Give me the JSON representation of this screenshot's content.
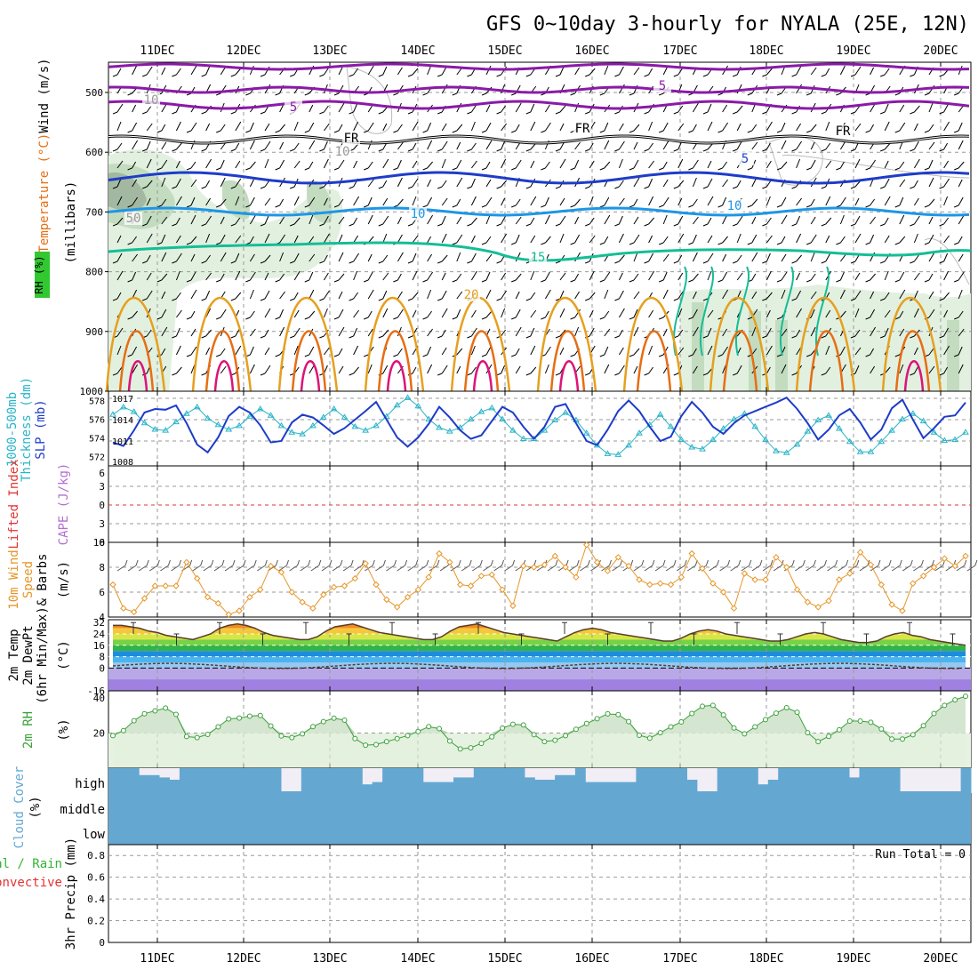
{
  "title": "GFS 0~10day 3-hourly for NYALA (25E, 12N)",
  "dates": [
    "11DEC",
    "12DEC",
    "13DEC",
    "14DEC",
    "15DEC",
    "16DEC",
    "17DEC",
    "18DEC",
    "19DEC",
    "20DEC"
  ],
  "colors": {
    "purple": "#8a1aa8",
    "black": "#000000",
    "blue": "#1e3cc8",
    "lightblue": "#1e96e6",
    "teal": "#14be96",
    "gold": "#e6a01e",
    "orange": "#e66e14",
    "magenta": "#dc1478",
    "rh_light": "#e2f0e0",
    "rh_mid": "#c3dcc0",
    "rh_dark": "#a3b8a0",
    "slp": "#1e3cc8",
    "thick": "#28b4c8",
    "wind10": "#e69628",
    "rh2m": "#3ca03c",
    "cloud": "#64a8d2",
    "cloud_bg": "#f2eef6",
    "precip_red": "#e63232",
    "precip_green": "#32b432"
  },
  "panels": {
    "upper": {
      "ylabel_wind": "Wind (m/s)",
      "ylabel_temp": "Temperature (°C)",
      "ylabel_mb": "(millibars)",
      "ylabel_rh": "RH (%)",
      "ticks": [
        "500",
        "600",
        "700",
        "800",
        "900",
        "1000"
      ],
      "contour_labels": [
        "5",
        "5",
        "FR",
        "FR",
        "FR",
        "5",
        "10",
        "10",
        "15",
        "20",
        "10",
        "10",
        "50"
      ]
    },
    "slp": {
      "ylabel_a": "1000-500mb",
      "ylabel_b": "Thickness (dm)",
      "ylabel_c": "SLP (mb)",
      "left_ticks": [
        "578",
        "576",
        "574",
        "572"
      ],
      "right_ticks": [
        "1017",
        "1014",
        "1011",
        "1008"
      ]
    },
    "cape": {
      "ylabel_a": "Lifted Index",
      "ylabel_b": "CAPE (J/kg)",
      "ticks": [
        "6",
        "3",
        "0",
        "3",
        "6"
      ]
    },
    "wind10": {
      "ylabel_a": "10m Wind",
      "ylabel_b": "Speed",
      "ylabel_c": "& Barbs",
      "ylabel_unit": "(m/s)",
      "ticks": [
        "10",
        "8",
        "6",
        "4"
      ]
    },
    "temp2m": {
      "ylabel_a": "2m Temp",
      "ylabel_b": "2m DewPt",
      "ylabel_c": "(6hr Min/Max)",
      "ylabel_unit": "(°C)",
      "ticks": [
        "32",
        "24",
        "16",
        "8",
        "0",
        "-16"
      ]
    },
    "rh2m": {
      "ylabel_a": "2m RH",
      "ylabel_unit": "(%)",
      "ticks": [
        "40",
        "20"
      ]
    },
    "cloud": {
      "ylabel_a": "Cloud Cover",
      "ylabel_unit": "(%)",
      "levels": [
        "high",
        "middle",
        "low"
      ]
    },
    "precip": {
      "ylabel_a": "Total / Rain",
      "ylabel_b": "Convective",
      "ylabel_c": "3hr Precip (mm)",
      "ticks": [
        "0.8",
        "0.6",
        "0.4",
        "0.2",
        "0"
      ],
      "run_total": "Run Total = 0"
    }
  },
  "chart_data": [
    {
      "type": "line",
      "title": "1000-500mb Thickness (dm)",
      "ylim": [
        571,
        579
      ],
      "values": [
        576.5,
        577.3,
        576.8,
        575.6,
        574.9,
        574.8,
        575.7,
        576.6,
        577.3,
        576.1,
        575.4,
        574.9,
        575.3,
        576.3,
        577.1,
        576.4,
        575.3,
        574.6,
        574.4,
        575.3,
        576.2,
        577.1,
        576.2,
        575.2,
        574.8,
        575.3,
        576.3,
        577.5,
        578.3,
        577.4,
        576.0,
        575.1,
        574.7,
        575.1,
        576.0,
        576.8,
        577.2,
        576.0,
        574.8,
        573.9,
        573.9,
        574.8,
        575.9,
        576.7,
        575.9,
        574.5,
        573.2,
        572.3,
        572.2,
        573.2,
        574.5,
        575.4,
        576.5,
        575.2,
        573.8,
        573.0,
        572.8,
        573.8,
        575.0,
        576.0,
        576.6,
        575.2,
        573.8,
        572.6,
        572.4,
        573.3,
        574.7,
        575.9,
        576.4,
        575.0,
        573.6,
        572.5,
        572.5,
        573.6,
        574.8,
        576.0,
        576.6,
        575.8,
        574.6,
        573.7,
        573.8,
        574.6
      ]
    },
    {
      "type": "line",
      "title": "SLP (mb)",
      "ylim": [
        1007.5,
        1018
      ],
      "values": [
        1010.8,
        1010.3,
        1012.5,
        1015.0,
        1015.5,
        1015.4,
        1016.0,
        1013.5,
        1010.5,
        1009.4,
        1011.5,
        1014.5,
        1015.8,
        1015.0,
        1013.2,
        1010.8,
        1011.0,
        1013.6,
        1014.7,
        1014.3,
        1013.2,
        1012.0,
        1012.8,
        1014.0,
        1015.2,
        1016.5,
        1014.0,
        1011.5,
        1010.2,
        1011.5,
        1013.4,
        1015.8,
        1014.3,
        1012.5,
        1011.3,
        1011.8,
        1013.8,
        1015.8,
        1015.0,
        1013.0,
        1011.3,
        1013.0,
        1015.8,
        1016.2,
        1013.5,
        1011.0,
        1010.4,
        1012.6,
        1015.2,
        1016.7,
        1015.2,
        1013.0,
        1011.0,
        1011.6,
        1014.5,
        1016.5,
        1015.0,
        1013.0,
        1012.0,
        1013.5,
        1014.6,
        1015.2,
        1015.8,
        1016.4,
        1017.1,
        1015.5,
        1013.5,
        1011.2,
        1012.6,
        1014.6,
        1015.5,
        1013.6,
        1011.2,
        1012.6,
        1015.6,
        1016.8,
        1014.0,
        1011.4,
        1012.8,
        1014.4,
        1014.6,
        1016.4
      ]
    },
    {
      "type": "line",
      "title": "10m Wind Speed (m/s)",
      "ylim": [
        4,
        10
      ],
      "values": [
        6.6,
        4.7,
        4.4,
        5.5,
        6.5,
        6.5,
        6.5,
        8.4,
        7.1,
        5.6,
        5.1,
        4.2,
        4.5,
        5.6,
        6.2,
        8.1,
        7.6,
        6.0,
        5.2,
        4.7,
        5.8,
        6.4,
        6.5,
        7.1,
        8.3,
        6.6,
        5.4,
        4.8,
        5.6,
        6.2,
        7.2,
        9.1,
        8.4,
        6.6,
        6.5,
        7.3,
        7.4,
        6.2,
        4.9,
        8.1,
        8.0,
        8.2,
        8.9,
        8.0,
        7.2,
        9.8,
        8.4,
        7.7,
        8.8,
        8.1,
        7.0,
        6.6,
        6.7,
        6.6,
        7.2,
        9.1,
        7.9,
        6.7,
        6.0,
        4.7,
        7.5,
        7.0,
        7.0,
        8.8,
        8.0,
        6.2,
        5.2,
        4.8,
        5.3,
        7.0,
        7.5,
        9.2,
        8.2,
        6.6,
        5.0,
        4.5,
        6.7,
        7.3,
        8.0,
        8.7,
        8.1,
        8.9
      ]
    },
    {
      "type": "line",
      "title": "2m RH (%)",
      "ylim": [
        0,
        44
      ],
      "values": [
        18.5,
        21.4,
        27,
        31,
        32.6,
        34.2,
        30.6,
        18,
        17.4,
        19.2,
        23.5,
        28,
        28.5,
        29.6,
        30,
        24,
        18.3,
        17.4,
        19.5,
        23.6,
        26.5,
        28.4,
        27.3,
        16.8,
        13.1,
        13.4,
        15.1,
        16.8,
        18.5,
        20.9,
        23.6,
        22.5,
        15.4,
        10.9,
        11.6,
        14.1,
        17.8,
        22.8,
        25.0,
        24.6,
        19.0,
        15.1,
        15.9,
        18.5,
        22.1,
        25.4,
        28.1,
        30.9,
        30.5,
        26.5,
        18.7,
        17.1,
        20.2,
        23.5,
        26.3,
        31.1,
        35.2,
        35.7,
        30.3,
        22.9,
        19.5,
        23.5,
        27.6,
        31.3,
        34.4,
        31.8,
        20.2,
        15.1,
        18.1,
        21.8,
        26.8,
        26.8,
        26.1,
        22.3,
        16.6,
        16.6,
        19.0,
        24.1,
        31.1,
        35.7,
        38.9,
        40.9
      ]
    },
    {
      "type": "area",
      "title": "2m Temp (°C)",
      "ylim": [
        -16,
        34
      ],
      "values": [
        30,
        30,
        29,
        28,
        26,
        25,
        23,
        22,
        21,
        20,
        22,
        24,
        28,
        30,
        31,
        30,
        28,
        25,
        23,
        22,
        21,
        20,
        20,
        22,
        26,
        29,
        30,
        31,
        29,
        27,
        25,
        24,
        23,
        22,
        21,
        20,
        20,
        22,
        26,
        29,
        30,
        31,
        29,
        27,
        25,
        24,
        23,
        22,
        21,
        20,
        19,
        22,
        25,
        27,
        28,
        27,
        25,
        24,
        23,
        22,
        21,
        20,
        19,
        19,
        21,
        24,
        26,
        27,
        26,
        24,
        23,
        22,
        21,
        20,
        19,
        19,
        20,
        22,
        24,
        25,
        24,
        22,
        20,
        19,
        18,
        18,
        19,
        22,
        24,
        25,
        23,
        22,
        20,
        19,
        18,
        17,
        16
      ]
    }
  ],
  "cloud_high_gap": [
    0,
    0,
    0,
    0.3,
    0.3,
    0.4,
    0.5,
    0,
    0,
    0,
    0,
    0,
    0,
    0,
    0,
    0,
    0,
    1,
    1,
    0,
    0,
    0,
    0,
    0,
    0,
    0.7,
    0.6,
    0,
    0,
    0,
    0,
    0.6,
    0.6,
    0.6,
    0.4,
    0.4,
    0,
    0,
    0,
    0,
    0,
    0.4,
    0.5,
    0.5,
    0.3,
    0.3,
    0,
    0.6,
    0.6,
    0.6,
    0.6,
    0.6,
    0,
    0,
    0,
    0,
    0,
    0.5,
    1,
    1,
    0,
    0,
    0,
    0,
    0.7,
    0.5,
    0,
    0,
    0,
    0,
    0,
    0,
    0,
    0.4,
    0,
    0,
    0,
    0,
    1,
    1,
    1,
    1,
    1,
    1,
    0
  ]
}
